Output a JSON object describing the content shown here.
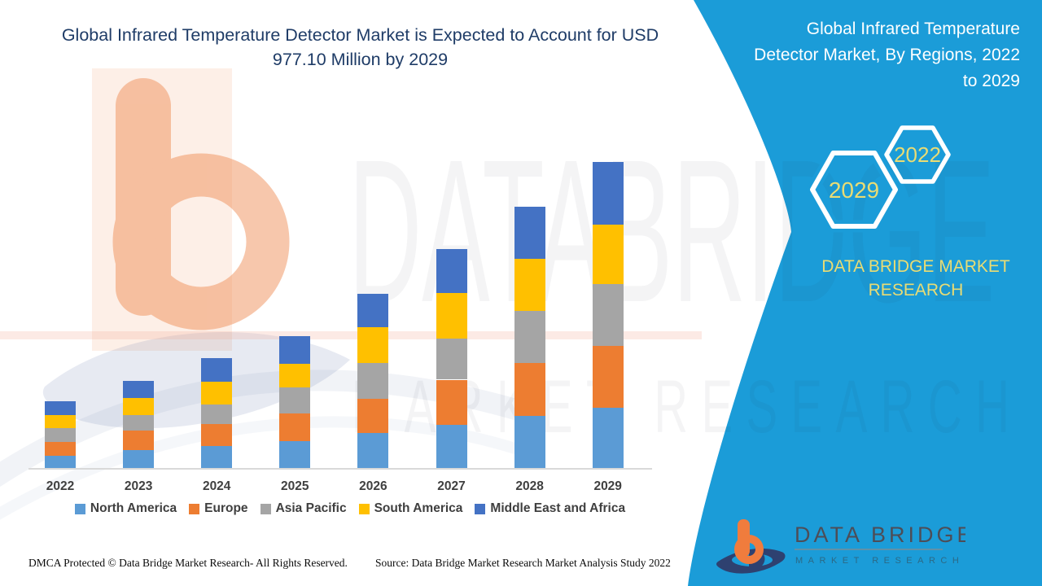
{
  "header": {
    "lines": [
      "Global Infrared Temperature Detector Market is Expected to Account for USD",
      "977.10 Million by 2029"
    ]
  },
  "banner": {
    "title_lines": [
      "Global Infrared Temperature",
      "Detector Market, By Regions, 2022",
      "to 2029"
    ],
    "year_badge_large": "2029",
    "year_badge_small": "2022",
    "brand_lines": [
      "DATA BRIDGE MARKET",
      "RESEARCH"
    ]
  },
  "watermark": {
    "line1": "DATABRIDGE",
    "line2": "MARKET RESEARCH"
  },
  "colors": {
    "banner_teal": "#1B9CD8",
    "accent_khaki": "#E9DC74",
    "logo_orange": "#F07C3D",
    "logo_navy": "#2E4170",
    "title_navy": "#1F3C67"
  },
  "chart_data": {
    "type": "bar",
    "subtype": "stacked-vertical",
    "title": "Global Infrared Temperature Detector Market is Expected to Account for USD 977.10 Million by 2029",
    "unit": "USD Million",
    "categories": [
      "2022",
      "2023",
      "2024",
      "2025",
      "2026",
      "2027",
      "2028",
      "2029"
    ],
    "series": [
      {
        "name": "North America",
        "color": "#5B9BD5",
        "values": [
          40,
          57,
          71,
          87,
          111,
          139,
          167,
          193.2
        ]
      },
      {
        "name": "Europe",
        "color": "#ED7D31",
        "values": [
          42,
          63,
          69,
          86,
          110,
          143,
          168,
          196.9
        ]
      },
      {
        "name": "Asia Pacific",
        "color": "#A5A5A5",
        "values": [
          45,
          49,
          64,
          84,
          114,
          130,
          167,
          196.9
        ]
      },
      {
        "name": "South America",
        "color": "#FFC000",
        "values": [
          42,
          55,
          72,
          76,
          114,
          146,
          167,
          190.6
        ]
      },
      {
        "name": "Middle East and Africa",
        "color": "#4472C4",
        "values": [
          43,
          54,
          74,
          87,
          106,
          140,
          164,
          199.5
        ]
      }
    ],
    "totals_estimated": [
      212,
      278,
      350,
      420,
      555,
      698,
      833,
      977.1
    ],
    "ylim": [
      0,
      1000
    ],
    "grid": false,
    "y_axis_shown": false,
    "legend_position": "bottom"
  },
  "footer": {
    "dmca": "DMCA Protected © Data Bridge Market Research- All Rights Reserved.",
    "source": "Source: Data Bridge Market Research Market Analysis Study 2022",
    "logo": {
      "title": "DATA BRIDGE",
      "subtitle": "MARKET RESEARCH"
    }
  }
}
